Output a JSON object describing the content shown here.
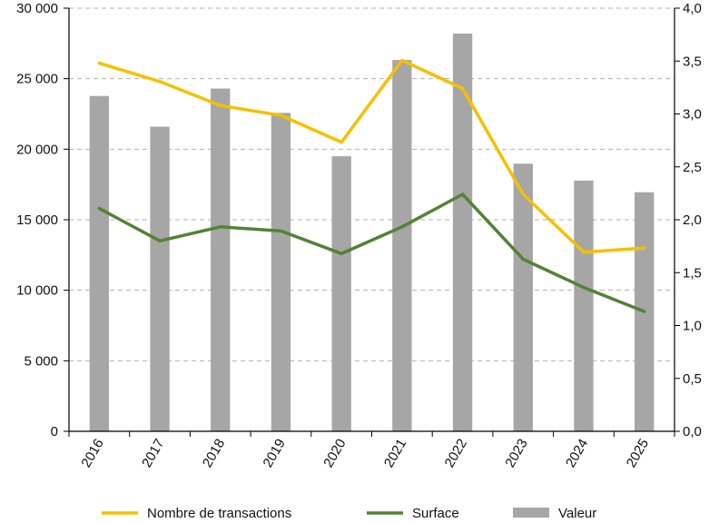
{
  "chart_data": {
    "type": "bar",
    "title": "",
    "xlabel": "",
    "ylabel": "",
    "y2label": "",
    "categories": [
      "2016",
      "2017",
      "2018",
      "2019",
      "2020",
      "2021",
      "2022",
      "2023",
      "2024",
      "2025"
    ],
    "ylim": [
      0,
      30000
    ],
    "y2lim": [
      0,
      4.0
    ],
    "yticks": [
      "0",
      "5 000",
      "10 000",
      "15 000",
      "20 000",
      "25 000",
      "30 000"
    ],
    "y2ticks": [
      "0,0",
      "0,5",
      "1,0",
      "1,5",
      "2,0",
      "2,5",
      "3,0",
      "3,5",
      "4,0"
    ],
    "grid": "horizontal dashed",
    "legend_position": "bottom",
    "series": [
      {
        "name": "Valeur",
        "kind": "bar",
        "axis": "right",
        "color": "#a6a6a6",
        "values": [
          3.17,
          2.88,
          3.24,
          3.01,
          2.6,
          3.51,
          3.76,
          2.53,
          2.37,
          2.26
        ]
      },
      {
        "name": "Nombre de transactions",
        "kind": "line",
        "axis": "left",
        "color": "#f5c000",
        "values": [
          26100,
          24800,
          23100,
          22400,
          20500,
          26300,
          24300,
          16800,
          12700,
          13000
        ]
      },
      {
        "name": "Surface",
        "kind": "line",
        "axis": "left",
        "color": "#548235",
        "values": [
          15800,
          13500,
          14500,
          14200,
          12600,
          14500,
          16800,
          12200,
          10200,
          8500
        ]
      }
    ]
  }
}
